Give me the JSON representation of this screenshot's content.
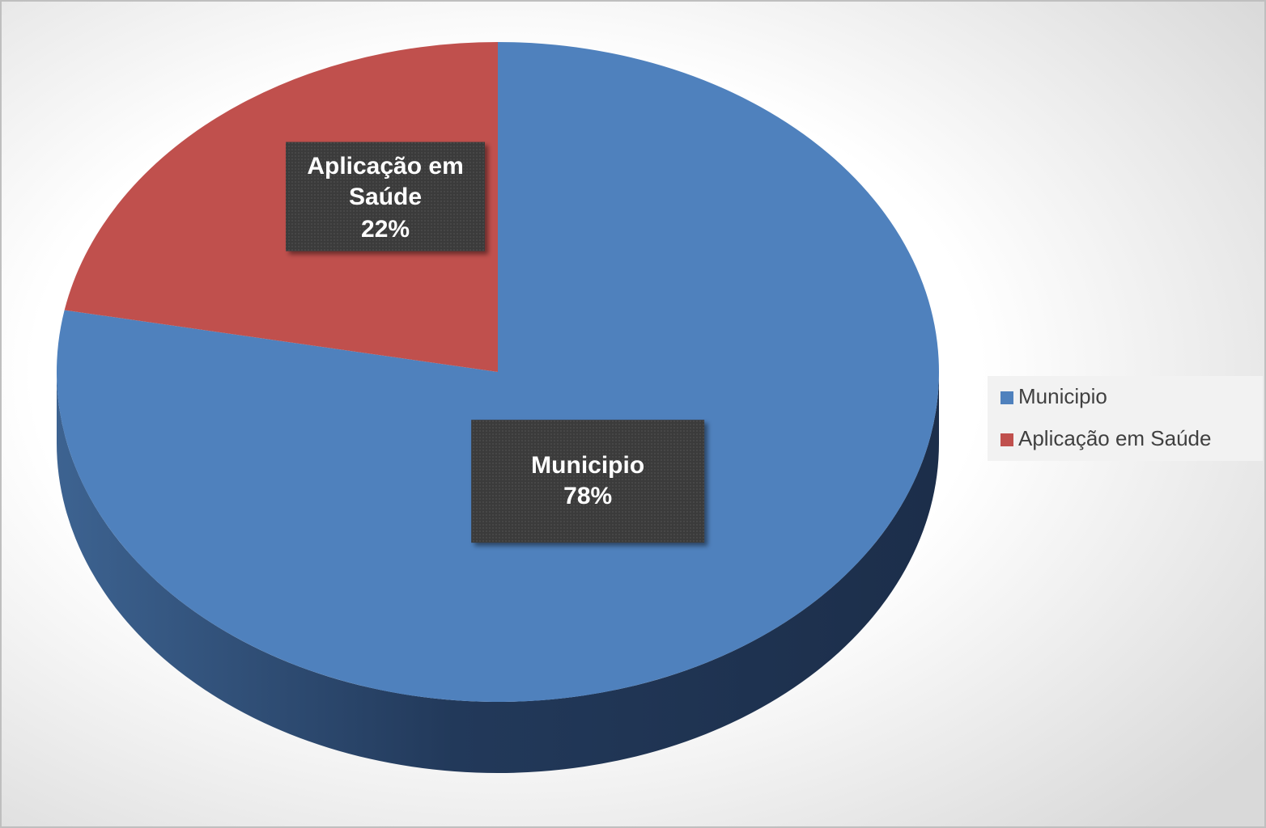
{
  "chart_data": {
    "type": "pie",
    "categories": [
      "Municipio",
      "Aplicação em Saúde"
    ],
    "values": [
      78,
      22
    ],
    "value_labels": [
      "78%",
      "22%"
    ],
    "colors": [
      "#4f81bd",
      "#c0504d"
    ],
    "legend": "right"
  }
}
